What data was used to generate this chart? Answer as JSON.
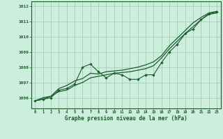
{
  "title": "Graphe pression niveau de la mer (hPa)",
  "bg_color": "#cceedd",
  "grid_color": "#aaccbb",
  "line_color": "#1a5c2a",
  "xlim": [
    -0.5,
    23.5
  ],
  "ylim": [
    1005.3,
    1012.3
  ],
  "yticks": [
    1006,
    1007,
    1008,
    1009,
    1010,
    1011,
    1012
  ],
  "xticks": [
    0,
    1,
    2,
    3,
    4,
    5,
    6,
    7,
    8,
    9,
    10,
    11,
    12,
    13,
    14,
    15,
    16,
    17,
    18,
    19,
    20,
    21,
    22,
    23
  ],
  "series1_x": [
    0,
    1,
    2,
    3,
    4,
    5,
    6,
    7,
    8,
    9,
    10,
    11,
    12,
    13,
    14,
    15,
    16,
    17,
    18,
    19,
    20,
    21,
    22,
    23
  ],
  "series1_y": [
    1005.8,
    1005.9,
    1006.0,
    1006.5,
    1006.6,
    1006.9,
    1008.0,
    1008.2,
    1007.7,
    1007.3,
    1007.6,
    1007.5,
    1007.2,
    1007.2,
    1007.5,
    1007.5,
    1008.3,
    1009.0,
    1009.5,
    1010.2,
    1010.5,
    1011.1,
    1011.5,
    1011.6
  ],
  "series2_x": [
    0,
    1,
    2,
    3,
    4,
    5,
    6,
    7,
    8,
    9,
    10,
    11,
    12,
    13,
    14,
    15,
    16,
    17,
    18,
    19,
    20,
    21,
    22,
    23
  ],
  "series2_y": [
    1005.8,
    1005.9,
    1006.1,
    1006.4,
    1006.5,
    1006.8,
    1007.0,
    1007.3,
    1007.4,
    1007.5,
    1007.6,
    1007.65,
    1007.7,
    1007.8,
    1007.9,
    1008.1,
    1008.6,
    1009.2,
    1009.7,
    1010.2,
    1010.65,
    1011.1,
    1011.45,
    1011.55
  ],
  "series3_x": [
    0,
    1,
    2,
    3,
    4,
    5,
    6,
    7,
    8,
    9,
    10,
    11,
    12,
    13,
    14,
    15,
    16,
    17,
    18,
    19,
    20,
    21,
    22,
    23
  ],
  "series3_y": [
    1005.8,
    1006.0,
    1006.1,
    1006.6,
    1006.8,
    1007.1,
    1007.25,
    1007.6,
    1007.55,
    1007.7,
    1007.75,
    1007.8,
    1007.9,
    1008.0,
    1008.15,
    1008.35,
    1008.75,
    1009.4,
    1009.9,
    1010.4,
    1010.9,
    1011.25,
    1011.55,
    1011.65
  ]
}
